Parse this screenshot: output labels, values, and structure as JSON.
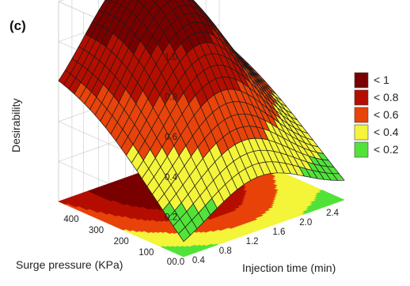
{
  "panel_label": "(c)",
  "chart_data": {
    "type": "surface3d",
    "title": "",
    "xlabel": "Injection time (min)",
    "ylabel": "Surge pressure (KPa)",
    "zlabel": "Desirability",
    "x_ticks": [
      "0.4",
      "0.8",
      "1.2",
      "1.6",
      "2.0",
      "2.4"
    ],
    "y_ticks": [
      "100",
      "200",
      "300",
      "400"
    ],
    "z_ticks": [
      "0.2",
      "0.4",
      "0.6",
      "0.8",
      "1.0"
    ],
    "origin_label": "00.0",
    "xlim": [
      0.2,
      2.6
    ],
    "ylim": [
      0,
      500
    ],
    "zlim": [
      0,
      1
    ],
    "surface": {
      "peak_x": 1.3,
      "peak_y": 360,
      "peak_value": 1.0,
      "corner_values": {
        "x_low_y_low": 0.0,
        "x_high_y_low": 0.05,
        "x_low_y_high": 0.42,
        "x_high_y_high": 0.42
      }
    },
    "floor_contour": true,
    "legend": {
      "placement": "right",
      "entries": [
        {
          "label": "< 1",
          "color": "#7a0000"
        },
        {
          "label": "< 0.8",
          "color": "#b40e00"
        },
        {
          "label": "< 0.6",
          "color": "#e8430a"
        },
        {
          "label": "< 0.4",
          "color": "#f4f43a"
        },
        {
          "label": "< 0.2",
          "color": "#52e23a"
        }
      ]
    }
  }
}
